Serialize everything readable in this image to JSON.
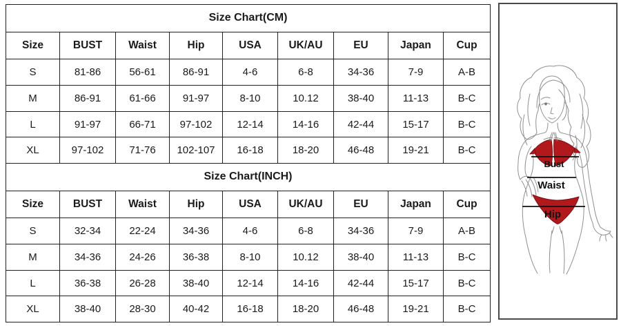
{
  "page": {
    "background": "#ffffff"
  },
  "cm_table": {
    "title": "Size Chart(CM)",
    "headers": [
      "Size",
      "BUST",
      "Waist",
      "Hip",
      "USA",
      "UK/AU",
      "EU",
      "Japan",
      "Cup"
    ],
    "rows": [
      [
        "S",
        "81-86",
        "56-61",
        "86-91",
        "4-6",
        "6-8",
        "34-36",
        "7-9",
        "A-B"
      ],
      [
        "M",
        "86-91",
        "61-66",
        "91-97",
        "8-10",
        "10.12",
        "38-40",
        "11-13",
        "B-C"
      ],
      [
        "L",
        "91-97",
        "66-71",
        "97-102",
        "12-14",
        "14-16",
        "42-44",
        "15-17",
        "B-C"
      ],
      [
        "XL",
        "97-102",
        "71-76",
        "102-107",
        "16-18",
        "18-20",
        "46-48",
        "19-21",
        "B-C"
      ]
    ]
  },
  "inch_table": {
    "title": "Size Chart(INCH)",
    "headers": [
      "Size",
      "BUST",
      "Waist",
      "Hip",
      "USA",
      "UK/AU",
      "EU",
      "Japan",
      "Cup"
    ],
    "rows": [
      [
        "S",
        "32-34",
        "22-24",
        "34-36",
        "4-6",
        "6-8",
        "34-36",
        "7-9",
        "A-B"
      ],
      [
        "M",
        "34-36",
        "24-26",
        "36-38",
        "8-10",
        "10.12",
        "38-40",
        "11-13",
        "B-C"
      ],
      [
        "L",
        "36-38",
        "26-28",
        "38-40",
        "12-14",
        "14-16",
        "42-44",
        "15-17",
        "B-C"
      ],
      [
        "XL",
        "38-40",
        "28-30",
        "40-42",
        "16-18",
        "18-20",
        "46-48",
        "19-21",
        "B-C"
      ]
    ]
  },
  "figure": {
    "labels": {
      "bust": "Bust",
      "waist": "Waist",
      "hip": "Hip"
    },
    "bikini_color": "#b2191d",
    "sketch_line_color": "#8f8f8f",
    "measure_line_color": "#111111"
  }
}
